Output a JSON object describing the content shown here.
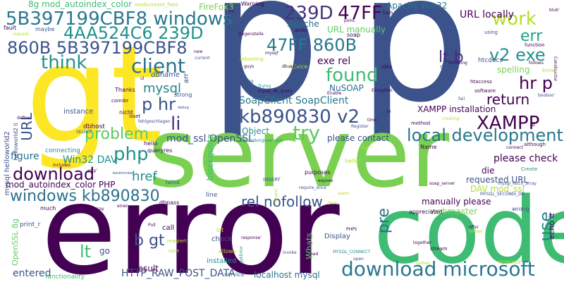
{
  "palette": {
    "dark_purple": "#440154",
    "indigo": "#3b528b",
    "teal": "#21918c",
    "green": "#5ec962",
    "lime": "#b5de2b",
    "yellow": "#fde725"
  },
  "words": [
    {
      "text": "p",
      "color": "#3b528b"
    },
    {
      "text": "p",
      "color": "#3b528b"
    },
    {
      "text": "gt",
      "color": "#fde725"
    },
    {
      "text": "server",
      "color": "#7ad151"
    },
    {
      "text": "error",
      "color": "#440154"
    },
    {
      "text": "code",
      "color": "#3fbc73"
    },
    {
      "text": "download microsoft",
      "color": "#2a788e"
    },
    {
      "text": "5B397199CBF8 windows",
      "color": "#2a788e"
    },
    {
      "text": "4AA524C6 239D",
      "color": "#21918c"
    },
    {
      "text": "860B 5B397199CBF8",
      "color": "#3b528b"
    },
    {
      "text": "239D",
      "color": "#46327e"
    },
    {
      "text": "47FF",
      "color": "#440154"
    },
    {
      "text": "47FF 860B",
      "color": "#2a788e"
    },
    {
      "text": "kb890830 v2",
      "color": "#3b528b"
    },
    {
      "text": "XAMPP",
      "color": "#440154"
    },
    {
      "text": "work",
      "color": "#b5de2b"
    },
    {
      "text": "err",
      "color": "#1fa187"
    },
    {
      "text": "v2 exe",
      "color": "#21918c"
    },
    {
      "text": "hr p",
      "color": "#440154"
    },
    {
      "text": "lt b",
      "color": "#472d7b"
    },
    {
      "text": "think",
      "color": "#21918c"
    },
    {
      "text": "client",
      "color": "#2c728e"
    },
    {
      "text": "found",
      "color": "#3fbc73"
    },
    {
      "text": "p hr",
      "color": "#3b528b"
    },
    {
      "text": "li",
      "color": "#46327e"
    },
    {
      "text": "problem",
      "color": "#5ec962"
    },
    {
      "text": "try",
      "color": "#5ec962"
    },
    {
      "text": "local development",
      "color": "#2a788e"
    },
    {
      "text": "php",
      "color": "#21918c"
    },
    {
      "text": "download",
      "color": "#440154"
    },
    {
      "text": "windows kb890830",
      "color": "#2c728e"
    },
    {
      "text": "URL",
      "color": "#3b528b"
    },
    {
      "text": "return",
      "color": "#440154"
    },
    {
      "text": "use",
      "color": "#26828e"
    },
    {
      "text": "pre",
      "color": "#2c728e"
    },
    {
      "text": "rel nofollow",
      "color": "#3b528b"
    },
    {
      "text": "href",
      "color": "#21918c"
    },
    {
      "text": "b gt",
      "color": "#3b528b"
    },
    {
      "text": "lt",
      "color": "#3fbc73"
    },
    {
      "text": "mysql",
      "color": "#26828e"
    },
    {
      "text": "SoapClient SoapClient",
      "color": "#2a788e"
    },
    {
      "text": "XAMPP installation",
      "color": "#440154"
    },
    {
      "text": "exe rel",
      "color": "#440154"
    },
    {
      "text": "NuSOAP",
      "color": "#2c728e"
    },
    {
      "text": "URL manually",
      "color": "#5ec962"
    },
    {
      "text": "URL locally",
      "color": "#440154"
    },
    {
      "text": "Apache Win32",
      "color": "#2c728e"
    },
    {
      "text": "FireFox3",
      "color": "#7ad151"
    },
    {
      "text": "8g mod_autoindex_color",
      "color": "#3fbc73"
    },
    {
      "text": "Object",
      "color": "#21918c"
    },
    {
      "text": "please contact",
      "color": "#3b528b"
    },
    {
      "text": "mod_ssl OpenSSL",
      "color": "#3b528b"
    },
    {
      "text": "Win32 DAV",
      "color": "#21918c"
    },
    {
      "text": "mod_autoindex_color PHP",
      "color": "#440154"
    },
    {
      "text": "figure",
      "color": "#2c728e"
    },
    {
      "text": "requested URL",
      "color": "#3b528b"
    },
    {
      "text": "please check",
      "color": "#440154"
    },
    {
      "text": "DAV mod_ssl",
      "color": "#b5de2b"
    },
    {
      "text": "manually please",
      "color": "#440154"
    },
    {
      "text": "webmaster",
      "color": "#7ad151"
    },
    {
      "text": "die",
      "color": "#440154"
    },
    {
      "text": "HTTP_RAW_POST_DATA",
      "color": "#3b528b"
    },
    {
      "text": "localhost mysql",
      "color": "#2c728e"
    },
    {
      "text": "entered",
      "color": "#3b528b"
    },
    {
      "text": "result",
      "color": "#440154"
    },
    {
      "text": "spelling",
      "color": "#7ad151"
    },
    {
      "text": "htcdocs",
      "color": "#3b528b"
    },
    {
      "text": "Apache",
      "color": "#2c728e"
    },
    {
      "text": "blockquote",
      "color": "#3fbc73"
    },
    {
      "text": "mysql helloworld2",
      "color": "#3b528b"
    },
    {
      "text": "helloworld2 li",
      "color": "#3b528b"
    },
    {
      "text": "dbname",
      "color": "#3b528b"
    },
    {
      "text": "Thanks",
      "color": "#440154"
    },
    {
      "text": "instance",
      "color": "#3b528b"
    },
    {
      "text": "dbhost",
      "color": "#440154"
    },
    {
      "text": "connecting",
      "color": "#21918c"
    },
    {
      "text": "go",
      "color": "#3b528b"
    },
    {
      "text": "call",
      "color": "#440154"
    },
    {
      "text": "check",
      "color": "#3b528b"
    },
    {
      "text": "installed",
      "color": "#21918c"
    },
    {
      "text": "Display",
      "color": "#3b528b"
    },
    {
      "text": "Whats",
      "color": "#5ec962"
    },
    {
      "text": "OpenSSL 8g",
      "color": "#5ec962"
    },
    {
      "text": "print_r",
      "color": "#3b528b"
    },
    {
      "text": "functionality",
      "color": "#3fbc73"
    },
    {
      "text": "service",
      "color": "#2c728e"
    },
    {
      "text": "echo lt",
      "color": "#440154"
    },
    {
      "text": "wrong",
      "color": "#3b528b"
    },
    {
      "text": "appreciated",
      "color": "#440154"
    },
    {
      "text": "Name",
      "color": "#440154"
    },
    {
      "text": "fault",
      "color": "#440154"
    },
    {
      "text": "maybe",
      "color": "#3b528b"
    },
    {
      "text": "mediumtext_field",
      "color": "#b5de2b"
    },
    {
      "text": "Warning",
      "color": "#440154"
    },
    {
      "text": "soap",
      "color": "#440154"
    },
    {
      "text": "arr",
      "color": "#3b528b"
    },
    {
      "text": "strong",
      "color": "#3b528b"
    },
    {
      "text": "connbr",
      "color": "#440154"
    },
    {
      "text": "nicht",
      "color": "#440154"
    },
    {
      "text": "isset",
      "color": "#440154"
    },
    {
      "text": "hello",
      "color": "#440154"
    },
    {
      "text": "queryres",
      "color": "#440154"
    },
    {
      "text": "dbpass",
      "color": "#440154"
    },
    {
      "text": "line",
      "color": "#3b528b"
    },
    {
      "text": "INSERT",
      "color": "#3b528b"
    },
    {
      "text": "purposes",
      "color": "#440154"
    },
    {
      "text": "hello'",
      "color": "#b5de2b"
    },
    {
      "text": "php'",
      "color": "#440154"
    },
    {
      "text": "much",
      "color": "#440154"
    },
    {
      "text": "allows",
      "color": "#b5de2b"
    },
    {
      "text": "lot",
      "color": "#b5de2b"
    },
    {
      "text": "invoke",
      "color": "#3b528b"
    },
    {
      "text": "open",
      "color": "#3b528b"
    },
    {
      "text": "stream",
      "color": "#440154"
    },
    {
      "text": "together",
      "color": "#440154"
    },
    {
      "text": "Create",
      "color": "#21918c"
    },
    {
      "text": "although",
      "color": "#440154"
    },
    {
      "text": "method",
      "color": "#440154"
    },
    {
      "text": "Register",
      "color": "#3b528b"
    },
    {
      "text": "time",
      "color": "#440154"
    },
    {
      "text": "software",
      "color": "#440154"
    },
    {
      "text": "htaccess",
      "color": "#440154"
    },
    {
      "text": "using",
      "color": "#3b528b"
    },
    {
      "text": "function",
      "color": "#440154"
    },
    {
      "text": "know",
      "color": "#b5de2b"
    },
    {
      "text": "follows",
      "color": "#440154"
    },
    {
      "text": "data",
      "color": "#3b528b"
    },
    {
      "text": "idea",
      "color": "#440154"
    },
    {
      "text": "advice",
      "color": "#b5de2b"
    },
    {
      "text": "guys",
      "color": "#440154"
    },
    {
      "text": "dbuser",
      "color": "#440154"
    },
    {
      "text": "rebooting",
      "color": "#b5de2b"
    },
    {
      "text": "Gegenstelle",
      "color": "#440154"
    },
    {
      "text": "Rating",
      "color": "#3b528b"
    },
    {
      "text": "new",
      "color": "#440154"
    },
    {
      "text": "current",
      "color": "#3b528b"
    },
    {
      "text": "ul",
      "color": "#440154"
    },
    {
      "text": "PC",
      "color": "#440154"
    },
    {
      "text": "point",
      "color": "#440154"
    },
    {
      "text": "Exception",
      "color": "#440154"
    },
    {
      "text": "Enable",
      "color": "#440154"
    },
    {
      "text": "mysql_db_query",
      "color": "#440154"
    },
    {
      "text": "Trying",
      "color": "#21918c"
    },
    {
      "text": "Verbindungsversuch",
      "color": "#21918c"
    },
    {
      "text": "expose",
      "color": "#440154"
    },
    {
      "text": "require_once",
      "color": "#3b528b"
    },
    {
      "text": "seem",
      "color": "#b5de2b"
    },
    {
      "text": "hat",
      "color": "#b5de2b"
    },
    {
      "text": "response'",
      "color": "#440154"
    },
    {
      "text": "PHP5",
      "color": "#440154"
    },
    {
      "text": "getError",
      "color": "#21918c"
    },
    {
      "text": "MYSQL_CONNECT",
      "color": "#21918c"
    },
    {
      "text": "soap_server",
      "color": "#440154"
    },
    {
      "text": "mysql_fetch_array",
      "color": "#3b528b"
    },
    {
      "text": "MYSQL_SECONDI_DB",
      "color": "#3b528b"
    },
    {
      "text": "Beispiel",
      "color": "#b5de2b"
    },
    {
      "text": "reagiert",
      "color": "#b5de2b"
    },
    {
      "text": "einer",
      "color": "#440154"
    },
    {
      "text": "Pull",
      "color": "#440154"
    },
    {
      "text": "fehlgeschlagen",
      "color": "#3b528b"
    },
    {
      "text": "debug",
      "color": "#3b528b"
    },
    {
      "text": "catch",
      "color": "#b5de2b"
    },
    {
      "text": "bad",
      "color": "#440154"
    },
    {
      "text": "creating",
      "color": "#b5de2b"
    },
    {
      "text": "following",
      "color": "#440154"
    },
    {
      "text": "fail",
      "color": "#3b528b"
    },
    {
      "text": "offer",
      "color": "#440154"
    },
    {
      "text": "RESPONSE",
      "color": "#b5de2b"
    },
    {
      "text": "SELECT",
      "color": "#3b528b"
    },
    {
      "text": "includes",
      "color": "#440154"
    },
    {
      "text": "define",
      "color": "#440154"
    },
    {
      "text": "request",
      "color": "#b5de2b"
    },
    {
      "text": "connect",
      "color": "#440154"
    },
    {
      "text": "ist",
      "color": "#440154"
    },
    {
      "text": "blub'",
      "color": "#440154"
    },
    {
      "text": "booboo'",
      "color": "#3b528b"
    },
    {
      "text": "Constructor",
      "color": "#440154"
    },
    {
      "text": "failed",
      "color": "#3b528b"
    },
    {
      "text": "array",
      "color": "#440154"
    },
    {
      "text": "wrote",
      "color": "#440154"
    },
    {
      "text": "hash",
      "color": "#440154"
    },
    {
      "text": "Hey",
      "color": "#3b528b"
    },
    {
      "text": "mysql'",
      "color": "#440154"
    },
    {
      "text": "Doro",
      "color": "#b5de2b"
    },
    {
      "text": "ID",
      "color": "#440154"
    },
    {
      "text": "farben",
      "color": "#b5de2b"
    },
    {
      "text": "Farben",
      "color": "#b5de2b"
    },
    {
      "text": "bestimmten",
      "color": "#3b528b"
    }
  ]
}
